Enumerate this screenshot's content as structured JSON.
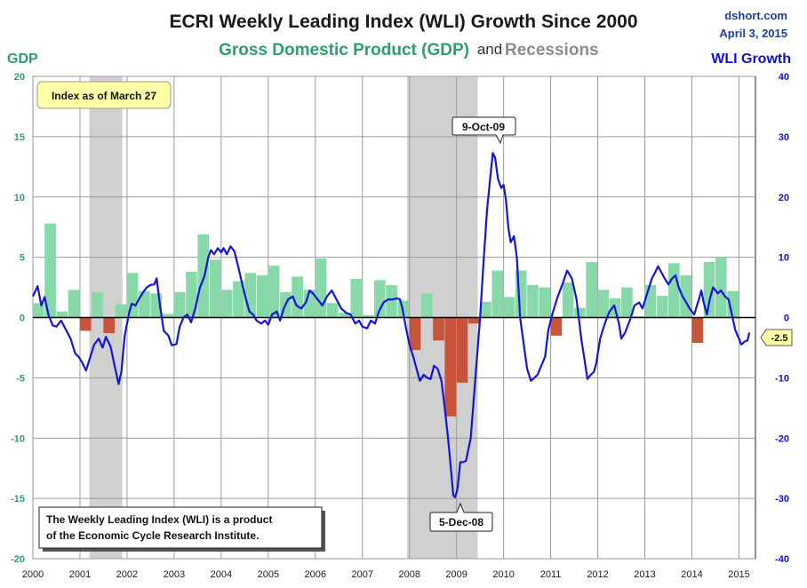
{
  "header": {
    "title": "ECRI Weekly Leading Index (WLI) Growth Since 2000",
    "subtitle_gdp": "Gross Domestic Product (GDP)",
    "subtitle_and": "and",
    "subtitle_recessions": "Recessions",
    "credit_site": "dshort.com",
    "credit_date": "April 3, 2015"
  },
  "annotations": {
    "index_date_box": "Index as of March 27",
    "peak_label": "9-Oct-09",
    "trough_label": "5-Dec-08",
    "last_value_label": "-2.5",
    "note_line1": "The Weekly Leading Index (WLI) is a product",
    "note_line2": "of the Economic Cycle Research Institute."
  },
  "colors": {
    "gdp_positive": "#87d9a9",
    "gdp_negative": "#c8543c",
    "recession": "#d0d0d0",
    "wli_line": "#1515d5",
    "left_axis": "#2e9e6b",
    "right_axis": "#1010d0"
  },
  "chart_data": {
    "type": "bar+line",
    "title": "ECRI Weekly Leading Index (WLI) Growth Since 2000",
    "grid": true,
    "axes": {
      "x": {
        "ticks": [
          "2000",
          "2001",
          "2002",
          "2003",
          "2004",
          "2005",
          "2006",
          "2007",
          "2008",
          "2009",
          "2010",
          "2011",
          "2012",
          "2013",
          "2014",
          "2015"
        ],
        "range": [
          2000,
          2015.35
        ]
      },
      "y_left": {
        "label": "GDP",
        "ticks": [
          "20",
          "15",
          "10",
          "5",
          "0",
          "-5",
          "-10",
          "-15",
          "-20"
        ],
        "range": [
          -20,
          20
        ]
      },
      "y_right": {
        "label": "WLI Growth",
        "ticks": [
          "40",
          "30",
          "20",
          "10",
          "0",
          "-10",
          "-20",
          "-30",
          "-40"
        ],
        "range": [
          -40,
          40
        ]
      }
    },
    "recessions": [
      {
        "start": 2001.2,
        "end": 2001.9
      },
      {
        "start": 2007.95,
        "end": 2009.45
      }
    ],
    "gdp_quarterly": {
      "axis": "left",
      "start": 2000.0,
      "values": [
        1.2,
        7.8,
        0.5,
        2.3,
        -1.1,
        2.1,
        -1.3,
        1.1,
        3.7,
        2.2,
        2.0,
        0.3,
        2.1,
        3.8,
        6.9,
        4.8,
        2.3,
        3.0,
        3.7,
        3.5,
        4.3,
        2.1,
        3.4,
        2.3,
        4.9,
        1.2,
        0.4,
        3.2,
        0.2,
        3.1,
        2.7,
        1.4,
        -2.7,
        2.0,
        -1.9,
        -8.2,
        -5.4,
        -0.5,
        1.3,
        3.9,
        1.7,
        3.9,
        2.7,
        2.5,
        -1.5,
        2.9,
        0.8,
        4.6,
        2.3,
        1.6,
        2.5,
        0.1,
        2.7,
        1.8,
        4.5,
        3.5,
        -2.1,
        4.6,
        5.0,
        2.2
      ]
    },
    "wli_growth": {
      "axis": "right",
      "points": [
        [
          2000.0,
          3.5
        ],
        [
          2000.1,
          5.2
        ],
        [
          2000.18,
          2.0
        ],
        [
          2000.25,
          3.4
        ],
        [
          2000.33,
          0.5
        ],
        [
          2000.42,
          -1.3
        ],
        [
          2000.5,
          -1.5
        ],
        [
          2000.6,
          -0.5
        ],
        [
          2000.7,
          -2.0
        ],
        [
          2000.8,
          -3.5
        ],
        [
          2000.9,
          -6.0
        ],
        [
          2000.97,
          -6.5
        ],
        [
          2001.05,
          -7.5
        ],
        [
          2001.13,
          -8.8
        ],
        [
          2001.2,
          -7.0
        ],
        [
          2001.3,
          -4.5
        ],
        [
          2001.4,
          -3.5
        ],
        [
          2001.48,
          -5.0
        ],
        [
          2001.55,
          -3.2
        ],
        [
          2001.65,
          -4.8
        ],
        [
          2001.75,
          -8.5
        ],
        [
          2001.82,
          -11.0
        ],
        [
          2001.88,
          -9.0
        ],
        [
          2001.95,
          -3.0
        ],
        [
          2002.05,
          1.0
        ],
        [
          2002.1,
          2.3
        ],
        [
          2002.18,
          2.0
        ],
        [
          2002.25,
          3.0
        ],
        [
          2002.35,
          4.3
        ],
        [
          2002.42,
          5.0
        ],
        [
          2002.5,
          5.4
        ],
        [
          2002.58,
          5.5
        ],
        [
          2002.63,
          6.5
        ],
        [
          2002.7,
          2.0
        ],
        [
          2002.78,
          -2.2
        ],
        [
          2002.88,
          -3.0
        ],
        [
          2002.95,
          -4.6
        ],
        [
          2003.05,
          -4.4
        ],
        [
          2003.12,
          -1.5
        ],
        [
          2003.2,
          0.0
        ],
        [
          2003.28,
          0.5
        ],
        [
          2003.36,
          -0.8
        ],
        [
          2003.45,
          1.5
        ],
        [
          2003.55,
          5.0
        ],
        [
          2003.65,
          7.0
        ],
        [
          2003.72,
          9.8
        ],
        [
          2003.78,
          11.2
        ],
        [
          2003.85,
          10.5
        ],
        [
          2003.93,
          11.5
        ],
        [
          2004.0,
          10.8
        ],
        [
          2004.05,
          11.5
        ],
        [
          2004.12,
          10.5
        ],
        [
          2004.2,
          11.8
        ],
        [
          2004.28,
          11.0
        ],
        [
          2004.36,
          8.5
        ],
        [
          2004.45,
          5.5
        ],
        [
          2004.52,
          3.2
        ],
        [
          2004.6,
          1.0
        ],
        [
          2004.68,
          0.5
        ],
        [
          2004.75,
          -0.5
        ],
        [
          2004.85,
          -1.0
        ],
        [
          2004.93,
          -0.5
        ],
        [
          2005.0,
          -1.2
        ],
        [
          2005.08,
          0.5
        ],
        [
          2005.18,
          1.0
        ],
        [
          2005.25,
          -0.5
        ],
        [
          2005.33,
          1.5
        ],
        [
          2005.42,
          3.0
        ],
        [
          2005.52,
          3.5
        ],
        [
          2005.6,
          2.0
        ],
        [
          2005.7,
          1.5
        ],
        [
          2005.8,
          2.5
        ],
        [
          2005.88,
          4.5
        ],
        [
          2005.95,
          4.0
        ],
        [
          2006.05,
          3.0
        ],
        [
          2006.15,
          2.0
        ],
        [
          2006.25,
          3.5
        ],
        [
          2006.35,
          4.5
        ],
        [
          2006.45,
          3.0
        ],
        [
          2006.55,
          1.5
        ],
        [
          2006.65,
          0.8
        ],
        [
          2006.75,
          0.5
        ],
        [
          2006.85,
          -1.0
        ],
        [
          2006.93,
          -0.5
        ],
        [
          2007.0,
          -1.5
        ],
        [
          2007.1,
          -1.8
        ],
        [
          2007.18,
          -0.5
        ],
        [
          2007.27,
          -1.0
        ],
        [
          2007.35,
          1.0
        ],
        [
          2007.45,
          2.5
        ],
        [
          2007.55,
          3.0
        ],
        [
          2007.65,
          3.0
        ],
        [
          2007.73,
          3.2
        ],
        [
          2007.8,
          3.0
        ],
        [
          2007.85,
          1.5
        ],
        [
          2007.92,
          -1.5
        ],
        [
          2008.0,
          -4.5
        ],
        [
          2008.08,
          -6.5
        ],
        [
          2008.15,
          -8.5
        ],
        [
          2008.22,
          -10.5
        ],
        [
          2008.3,
          -9.5
        ],
        [
          2008.38,
          -10.0
        ],
        [
          2008.45,
          -10.2
        ],
        [
          2008.52,
          -8.0
        ],
        [
          2008.6,
          -8.5
        ],
        [
          2008.68,
          -10.5
        ],
        [
          2008.75,
          -15.0
        ],
        [
          2008.82,
          -20.0
        ],
        [
          2008.88,
          -25.0
        ],
        [
          2008.93,
          -29.5
        ],
        [
          2008.97,
          -29.8
        ],
        [
          2009.02,
          -28.5
        ],
        [
          2009.08,
          -24.0
        ],
        [
          2009.13,
          -24.0
        ],
        [
          2009.2,
          -23.8
        ],
        [
          2009.3,
          -20.0
        ],
        [
          2009.4,
          -10.0
        ],
        [
          2009.5,
          0.0
        ],
        [
          2009.58,
          10.0
        ],
        [
          2009.65,
          18.0
        ],
        [
          2009.72,
          23.5
        ],
        [
          2009.77,
          27.3
        ],
        [
          2009.82,
          26.5
        ],
        [
          2009.88,
          23.0
        ],
        [
          2009.95,
          21.5
        ],
        [
          2010.0,
          22.0
        ],
        [
          2010.05,
          19.5
        ],
        [
          2010.1,
          15.0
        ],
        [
          2010.15,
          12.5
        ],
        [
          2010.22,
          13.5
        ],
        [
          2010.28,
          10.0
        ],
        [
          2010.35,
          0.0
        ],
        [
          2010.42,
          -4.0
        ],
        [
          2010.5,
          -8.5
        ],
        [
          2010.58,
          -10.5
        ],
        [
          2010.65,
          -10.0
        ],
        [
          2010.72,
          -9.5
        ],
        [
          2010.8,
          -8.0
        ],
        [
          2010.88,
          -6.5
        ],
        [
          2010.95,
          -2.0
        ],
        [
          2011.05,
          1.0
        ],
        [
          2011.15,
          3.5
        ],
        [
          2011.25,
          5.5
        ],
        [
          2011.35,
          7.8
        ],
        [
          2011.45,
          6.5
        ],
        [
          2011.55,
          3.0
        ],
        [
          2011.65,
          -3.5
        ],
        [
          2011.72,
          -7.0
        ],
        [
          2011.78,
          -10.2
        ],
        [
          2011.85,
          -9.5
        ],
        [
          2011.92,
          -9.0
        ],
        [
          2011.97,
          -7.5
        ],
        [
          2012.05,
          -3.5
        ],
        [
          2012.15,
          -1.0
        ],
        [
          2012.25,
          1.0
        ],
        [
          2012.35,
          2.0
        ],
        [
          2012.45,
          -1.0
        ],
        [
          2012.5,
          -3.5
        ],
        [
          2012.58,
          -2.5
        ],
        [
          2012.68,
          -0.5
        ],
        [
          2012.78,
          2.0
        ],
        [
          2012.88,
          2.5
        ],
        [
          2012.95,
          1.5
        ],
        [
          2013.05,
          4.0
        ],
        [
          2013.15,
          6.5
        ],
        [
          2013.22,
          7.5
        ],
        [
          2013.28,
          8.5
        ],
        [
          2013.35,
          7.5
        ],
        [
          2013.42,
          6.5
        ],
        [
          2013.5,
          5.5
        ],
        [
          2013.58,
          6.5
        ],
        [
          2013.65,
          7.0
        ],
        [
          2013.72,
          5.0
        ],
        [
          2013.8,
          3.5
        ],
        [
          2013.88,
          2.5
        ],
        [
          2013.95,
          1.5
        ],
        [
          2014.05,
          0.5
        ],
        [
          2014.1,
          1.8
        ],
        [
          2014.15,
          3.0
        ],
        [
          2014.2,
          4.5
        ],
        [
          2014.25,
          2.5
        ],
        [
          2014.32,
          0.5
        ],
        [
          2014.38,
          3.0
        ],
        [
          2014.45,
          5.0
        ],
        [
          2014.55,
          4.0
        ],
        [
          2014.62,
          4.5
        ],
        [
          2014.7,
          3.5
        ],
        [
          2014.78,
          3.0
        ],
        [
          2014.85,
          0.5
        ],
        [
          2014.92,
          -2.0
        ],
        [
          2014.97,
          -3.0
        ],
        [
          2015.0,
          -3.5
        ],
        [
          2015.05,
          -4.5
        ],
        [
          2015.12,
          -4.0
        ],
        [
          2015.18,
          -3.8
        ],
        [
          2015.22,
          -2.5
        ]
      ]
    }
  }
}
